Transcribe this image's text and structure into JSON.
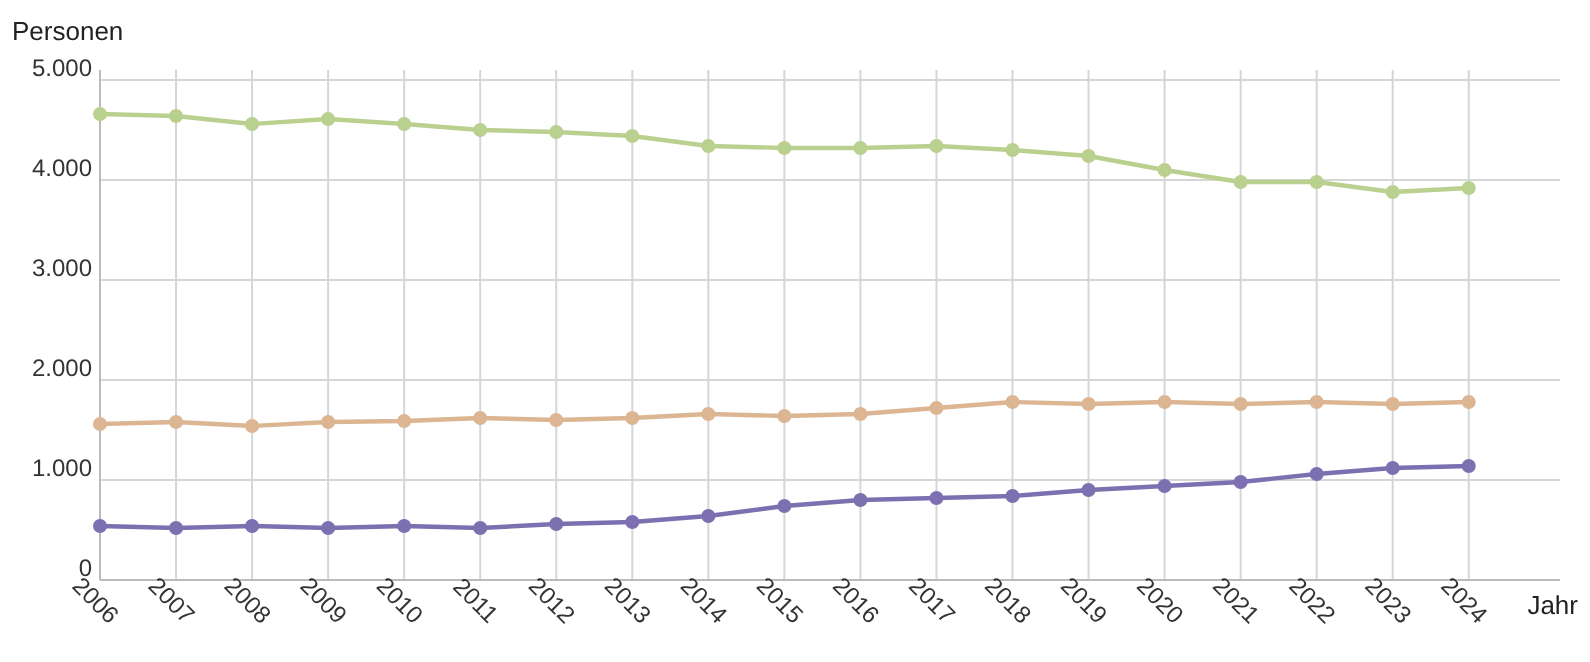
{
  "chart_data": {
    "type": "line",
    "ylabel": "Personen",
    "xlabel": "Jahr",
    "x": [
      2006,
      2007,
      2008,
      2009,
      2010,
      2011,
      2012,
      2013,
      2014,
      2015,
      2016,
      2017,
      2018,
      2019,
      2020,
      2021,
      2022,
      2023,
      2024
    ],
    "xlim": [
      2006,
      2025.2
    ],
    "xticks": [
      2006,
      2007,
      2008,
      2009,
      2010,
      2011,
      2012,
      2013,
      2014,
      2015,
      2016,
      2017,
      2018,
      2019,
      2020,
      2021,
      2022,
      2023,
      2024
    ],
    "ylim": [
      0,
      5000
    ],
    "yticks": [
      0,
      {
        "value": 1000,
        "label": "1.000"
      },
      {
        "value": 2000,
        "label": "2.000"
      },
      {
        "value": 3000,
        "label": "3.000"
      },
      {
        "value": 4000,
        "label": "4.000"
      },
      {
        "value": 5000,
        "label": "5.000"
      }
    ],
    "grid": true,
    "marker": "circle",
    "line_style": "solid",
    "series": [
      {
        "color": "#b9d08f",
        "values": [
          4660,
          4640,
          4560,
          4610,
          4560,
          4500,
          4480,
          4440,
          4340,
          4320,
          4320,
          4340,
          4300,
          4240,
          4100,
          3980,
          3980,
          3880,
          3920
        ]
      },
      {
        "color": "#dcb592",
        "values": [
          1560,
          1580,
          1540,
          1580,
          1590,
          1620,
          1600,
          1620,
          1660,
          1640,
          1660,
          1720,
          1780,
          1760,
          1780,
          1760,
          1780,
          1760,
          1780
        ]
      },
      {
        "color": "#7d70b0",
        "values": [
          540,
          520,
          540,
          520,
          540,
          520,
          560,
          580,
          640,
          740,
          800,
          820,
          840,
          900,
          940,
          980,
          1060,
          1120,
          1140
        ]
      }
    ]
  }
}
